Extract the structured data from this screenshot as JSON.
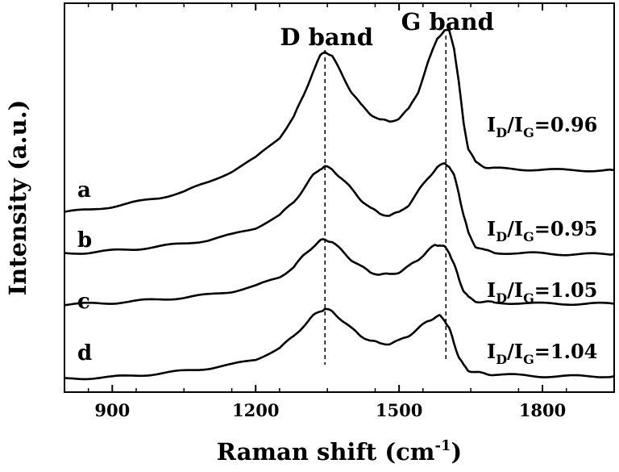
{
  "chart_data": {
    "type": "line",
    "title": "",
    "xlabel": "Raman shift (cm",
    "xlabel_sup": "-1",
    "xlabel_close": ")",
    "ylabel": "Intensity (a.u.)",
    "xlim": [
      800,
      1950
    ],
    "ylim": [
      0,
      4.4
    ],
    "x_ticks": [
      900,
      1200,
      1500,
      1800
    ],
    "grid": false,
    "legend": "none",
    "annotations": {
      "d_band": {
        "label": "D band",
        "x": 1345
      },
      "g_band": {
        "label": "G band",
        "x": 1598
      }
    },
    "series": [
      {
        "name": "a",
        "ratio": {
          "prefix": "I",
          "sub1": "D",
          "mid": "/I",
          "sub2": "G",
          "value": "=0.96"
        },
        "points": [
          [
            800,
            2.04
          ],
          [
            850,
            2.06
          ],
          [
            900,
            2.1
          ],
          [
            950,
            2.15
          ],
          [
            1000,
            2.2
          ],
          [
            1050,
            2.27
          ],
          [
            1100,
            2.37
          ],
          [
            1150,
            2.5
          ],
          [
            1200,
            2.65
          ],
          [
            1250,
            2.88
          ],
          [
            1280,
            3.12
          ],
          [
            1300,
            3.35
          ],
          [
            1320,
            3.63
          ],
          [
            1335,
            3.8
          ],
          [
            1345,
            3.86
          ],
          [
            1360,
            3.8
          ],
          [
            1380,
            3.6
          ],
          [
            1400,
            3.4
          ],
          [
            1420,
            3.25
          ],
          [
            1440,
            3.15
          ],
          [
            1460,
            3.08
          ],
          [
            1480,
            3.06
          ],
          [
            1500,
            3.1
          ],
          [
            1520,
            3.2
          ],
          [
            1540,
            3.4
          ],
          [
            1560,
            3.72
          ],
          [
            1580,
            4.0
          ],
          [
            1595,
            4.1
          ],
          [
            1605,
            4.08
          ],
          [
            1615,
            3.9
          ],
          [
            1625,
            3.5
          ],
          [
            1635,
            3.05
          ],
          [
            1645,
            2.75
          ],
          [
            1660,
            2.6
          ],
          [
            1680,
            2.55
          ],
          [
            1700,
            2.53
          ],
          [
            1750,
            2.52
          ],
          [
            1800,
            2.52
          ],
          [
            1850,
            2.51
          ],
          [
            1900,
            2.51
          ],
          [
            1950,
            2.51
          ]
        ]
      },
      {
        "name": "b",
        "ratio": {
          "prefix": "I",
          "sub1": "D",
          "mid": "/I",
          "sub2": "G",
          "value": "=0.95"
        },
        "points": [
          [
            800,
            1.57
          ],
          [
            850,
            1.58
          ],
          [
            900,
            1.6
          ],
          [
            950,
            1.62
          ],
          [
            1000,
            1.65
          ],
          [
            1050,
            1.68
          ],
          [
            1100,
            1.72
          ],
          [
            1150,
            1.78
          ],
          [
            1200,
            1.86
          ],
          [
            1250,
            2.0
          ],
          [
            1280,
            2.15
          ],
          [
            1300,
            2.3
          ],
          [
            1320,
            2.45
          ],
          [
            1335,
            2.53
          ],
          [
            1345,
            2.55
          ],
          [
            1360,
            2.52
          ],
          [
            1380,
            2.42
          ],
          [
            1400,
            2.3
          ],
          [
            1420,
            2.18
          ],
          [
            1440,
            2.08
          ],
          [
            1460,
            2.02
          ],
          [
            1480,
            2.0
          ],
          [
            1500,
            2.03
          ],
          [
            1520,
            2.12
          ],
          [
            1540,
            2.27
          ],
          [
            1560,
            2.42
          ],
          [
            1580,
            2.55
          ],
          [
            1595,
            2.58
          ],
          [
            1605,
            2.56
          ],
          [
            1615,
            2.45
          ],
          [
            1625,
            2.25
          ],
          [
            1635,
            2.0
          ],
          [
            1645,
            1.8
          ],
          [
            1660,
            1.65
          ],
          [
            1680,
            1.6
          ],
          [
            1700,
            1.58
          ],
          [
            1750,
            1.57
          ],
          [
            1800,
            1.57
          ],
          [
            1850,
            1.56
          ],
          [
            1900,
            1.56
          ],
          [
            1950,
            1.56
          ]
        ]
      },
      {
        "name": "c",
        "ratio": {
          "prefix": "I",
          "sub1": "D",
          "mid": "/I",
          "sub2": "G",
          "value": "=1.05"
        },
        "points": [
          [
            800,
            0.99
          ],
          [
            850,
            1.0
          ],
          [
            900,
            1.01
          ],
          [
            950,
            1.03
          ],
          [
            1000,
            1.05
          ],
          [
            1050,
            1.07
          ],
          [
            1100,
            1.1
          ],
          [
            1150,
            1.14
          ],
          [
            1200,
            1.2
          ],
          [
            1250,
            1.3
          ],
          [
            1280,
            1.42
          ],
          [
            1300,
            1.54
          ],
          [
            1320,
            1.65
          ],
          [
            1335,
            1.71
          ],
          [
            1345,
            1.73
          ],
          [
            1360,
            1.7
          ],
          [
            1380,
            1.6
          ],
          [
            1400,
            1.5
          ],
          [
            1420,
            1.42
          ],
          [
            1440,
            1.36
          ],
          [
            1460,
            1.33
          ],
          [
            1480,
            1.33
          ],
          [
            1500,
            1.36
          ],
          [
            1520,
            1.42
          ],
          [
            1540,
            1.5
          ],
          [
            1560,
            1.6
          ],
          [
            1575,
            1.66
          ],
          [
            1585,
            1.67
          ],
          [
            1595,
            1.64
          ],
          [
            1605,
            1.58
          ],
          [
            1615,
            1.45
          ],
          [
            1625,
            1.28
          ],
          [
            1635,
            1.15
          ],
          [
            1645,
            1.07
          ],
          [
            1660,
            1.03
          ],
          [
            1680,
            1.02
          ],
          [
            1700,
            1.01
          ],
          [
            1750,
            1.01
          ],
          [
            1800,
            1.0
          ],
          [
            1850,
            1.0
          ],
          [
            1900,
            1.0
          ],
          [
            1950,
            1.0
          ]
        ]
      },
      {
        "name": "d",
        "ratio": {
          "prefix": "I",
          "sub1": "D",
          "mid": "/I",
          "sub2": "G",
          "value": "=1.04"
        },
        "points": [
          [
            800,
            0.15
          ],
          [
            850,
            0.16
          ],
          [
            900,
            0.17
          ],
          [
            950,
            0.19
          ],
          [
            1000,
            0.21
          ],
          [
            1050,
            0.24
          ],
          [
            1100,
            0.27
          ],
          [
            1150,
            0.31
          ],
          [
            1200,
            0.37
          ],
          [
            1250,
            0.5
          ],
          [
            1280,
            0.63
          ],
          [
            1300,
            0.75
          ],
          [
            1320,
            0.86
          ],
          [
            1335,
            0.92
          ],
          [
            1345,
            0.94
          ],
          [
            1360,
            0.91
          ],
          [
            1380,
            0.82
          ],
          [
            1400,
            0.72
          ],
          [
            1420,
            0.64
          ],
          [
            1440,
            0.58
          ],
          [
            1460,
            0.55
          ],
          [
            1480,
            0.55
          ],
          [
            1500,
            0.58
          ],
          [
            1520,
            0.64
          ],
          [
            1540,
            0.72
          ],
          [
            1560,
            0.8
          ],
          [
            1575,
            0.85
          ],
          [
            1585,
            0.86
          ],
          [
            1595,
            0.82
          ],
          [
            1605,
            0.72
          ],
          [
            1615,
            0.55
          ],
          [
            1625,
            0.4
          ],
          [
            1635,
            0.3
          ],
          [
            1645,
            0.25
          ],
          [
            1660,
            0.22
          ],
          [
            1680,
            0.21
          ],
          [
            1700,
            0.2
          ],
          [
            1750,
            0.19
          ],
          [
            1800,
            0.18
          ],
          [
            1850,
            0.18
          ],
          [
            1900,
            0.18
          ],
          [
            1950,
            0.18
          ]
        ]
      }
    ]
  }
}
